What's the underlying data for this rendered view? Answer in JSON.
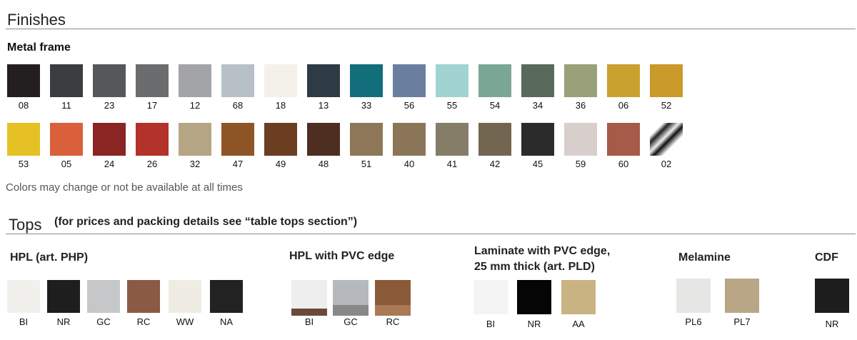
{
  "finishes": {
    "title": "Finishes",
    "metal_frame": {
      "title": "Metal frame",
      "rows": [
        [
          "08",
          "11",
          "23",
          "17",
          "12",
          "68",
          "18",
          "13",
          "33",
          "56",
          "55",
          "54",
          "34",
          "36",
          "06",
          "52"
        ],
        [
          "53",
          "05",
          "24",
          "26",
          "32",
          "47",
          "49",
          "48",
          "51",
          "40",
          "41",
          "42",
          "45",
          "59",
          "60",
          "02"
        ]
      ]
    },
    "note": "Colors may change or not be available at all times"
  },
  "tops": {
    "title": "Tops",
    "subtitle": "(for prices and packing details see “table tops section”)",
    "groups": [
      {
        "title_lines": [
          "HPL (art. PHP)"
        ],
        "codes": [
          "BI",
          "NR",
          "GC",
          "RC",
          "WW",
          "NA"
        ]
      },
      {
        "title_lines": [
          "HPL with PVC edge"
        ],
        "codes": [
          "BI",
          "GC",
          "RC"
        ]
      },
      {
        "title_lines": [
          "Laminate with PVC edge,",
          "25 mm thick (art. PLD)"
        ],
        "codes": [
          "BI",
          "NR",
          "AA"
        ]
      },
      {
        "title_lines": [
          "Melamine"
        ],
        "codes": [
          "PL6",
          "PL7"
        ]
      },
      {
        "title_lines": [
          "CDF"
        ],
        "codes": [
          "NR"
        ]
      }
    ]
  }
}
